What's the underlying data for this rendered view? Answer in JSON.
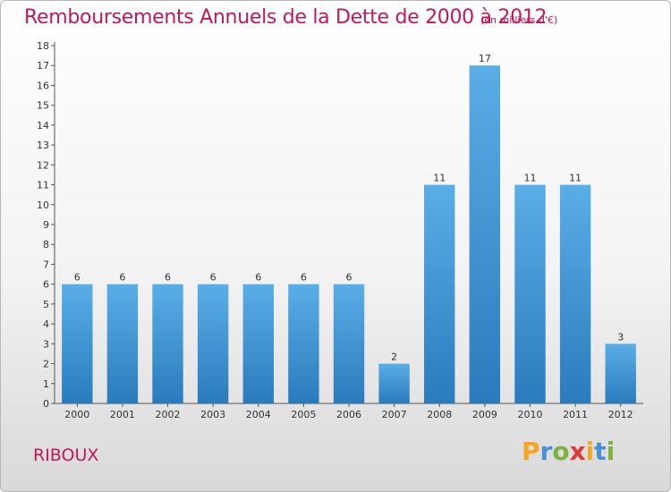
{
  "header": {
    "title": "Remboursements Annuels de la Dette de 2000 à 2012",
    "unit": "(en milliers d'€)"
  },
  "footer": {
    "commune": "RIBOUX",
    "logo_letters": [
      "P",
      "r",
      "o",
      "x",
      "i",
      "t",
      "i"
    ]
  },
  "colors": {
    "title": "#c2185b",
    "bar_top": "#5aaee6",
    "bar_bottom": "#2a7bbd",
    "logo": [
      "#f5a623",
      "#4a90d9",
      "#7cb342",
      "#e53935",
      "#f5a623",
      "#4a90d9",
      "#7cb342"
    ]
  },
  "chart_data": {
    "type": "bar",
    "categories": [
      "2000",
      "2001",
      "2002",
      "2003",
      "2004",
      "2005",
      "2006",
      "2007",
      "2008",
      "2009",
      "2010",
      "2011",
      "2012"
    ],
    "values": [
      6,
      6,
      6,
      6,
      6,
      6,
      6,
      2,
      11,
      17,
      11,
      11,
      3
    ],
    "data_labels": [
      "6",
      "6",
      "6",
      "6",
      "6",
      "6",
      "6",
      "2",
      "11",
      "17",
      "11",
      "11",
      "3"
    ],
    "y_ticks": [
      "0",
      "1",
      "2",
      "3",
      "4",
      "5",
      "6",
      "7",
      "8",
      "9",
      "10",
      "11",
      "12",
      "13",
      "14",
      "15",
      "16",
      "17",
      "18"
    ],
    "ylim": [
      0,
      18
    ],
    "grid": false
  }
}
